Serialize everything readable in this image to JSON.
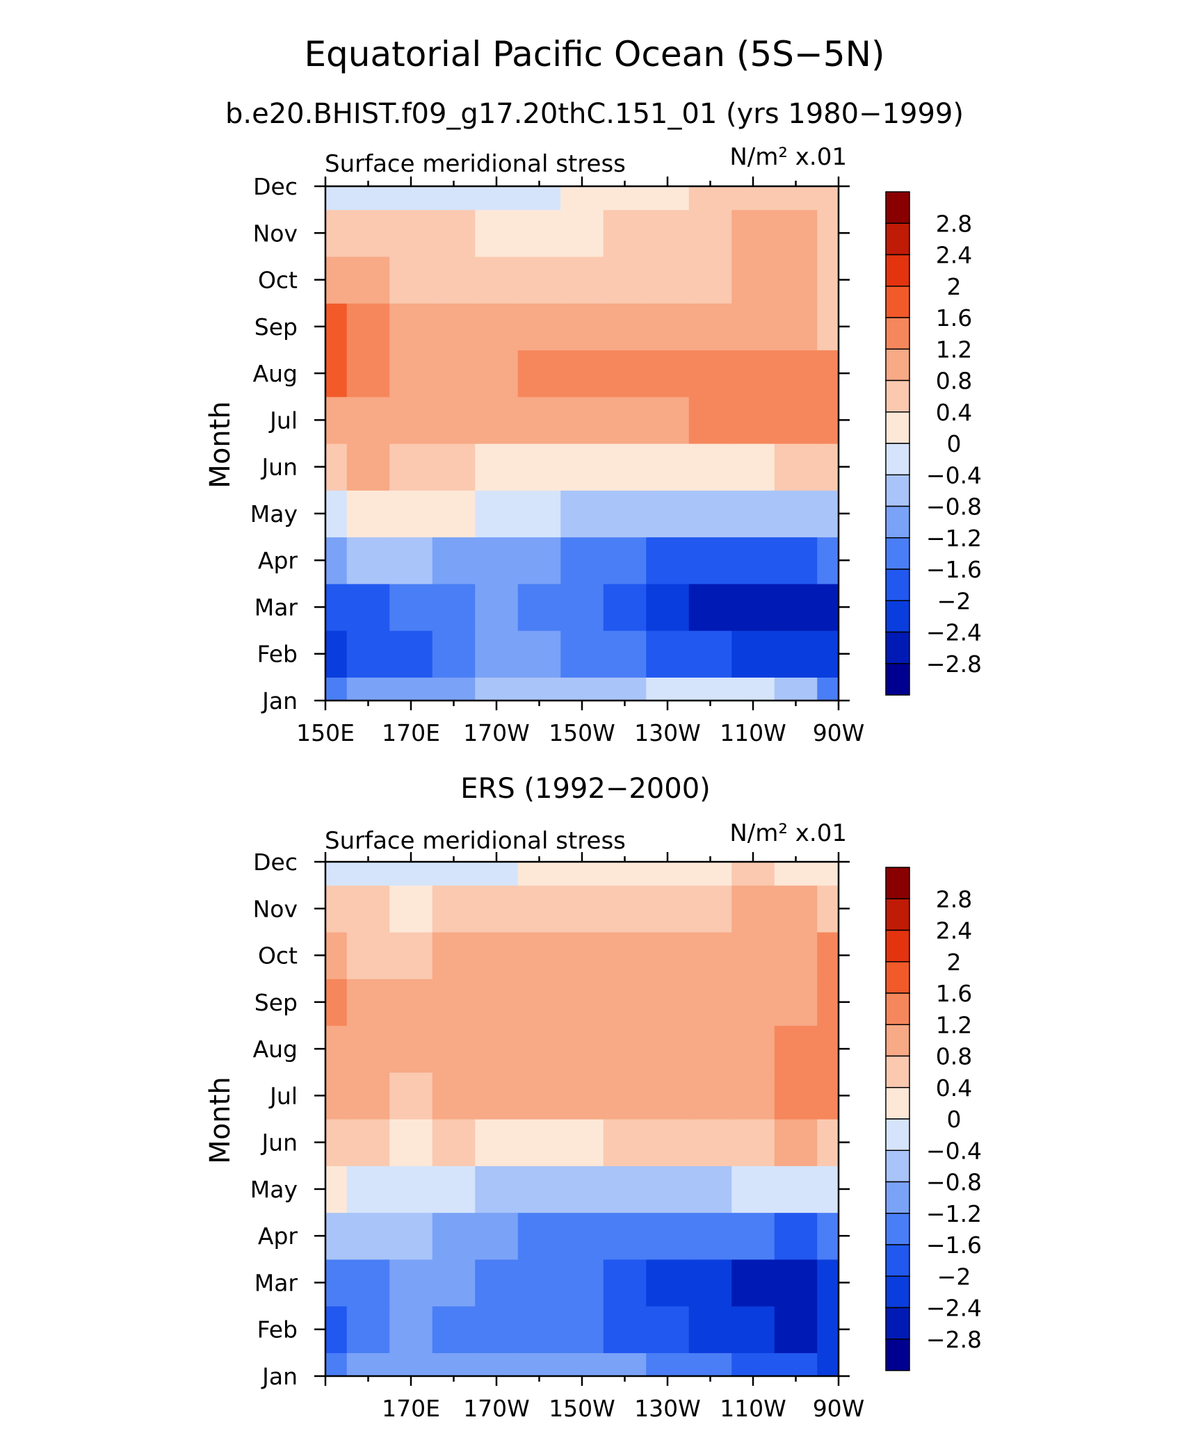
{
  "figure": {
    "title": "Equatorial Pacific Ocean (5S−5N)"
  },
  "palette": [
    "#000090",
    "#001bb5",
    "#0a3ddd",
    "#2158f0",
    "#4a7ef6",
    "#7aa2f7",
    "#a9c4f8",
    "#d5e4fb",
    "#fde8d8",
    "#fac9b0",
    "#f8a986",
    "#f6875c",
    "#f25a2a",
    "#e3330f",
    "#c01b06",
    "#8a0000"
  ],
  "colorbar": {
    "labels": [
      "2.8",
      "2.4",
      "2",
      "1.6",
      "1.2",
      "0.8",
      "0.4",
      "0",
      "−0.4",
      "−0.8",
      "−1.2",
      "−1.6",
      "−2",
      "−2.4",
      "−2.8"
    ]
  },
  "chart_data": [
    {
      "type": "heatmap",
      "title": "b.e20.BHIST.f09_g17.20thC.151_01 (yrs 1980−1999)",
      "left_label": "Surface meridional stress",
      "right_label": "N/m² x.01",
      "ylabel": "Month",
      "x": [
        "150E",
        "160E",
        "170E",
        "180",
        "170W",
        "160W",
        "150W",
        "140W",
        "130W",
        "120W",
        "110W",
        "100W",
        "90W"
      ],
      "x_tick_labels": [
        "150E",
        "170E",
        "170W",
        "150W",
        "130W",
        "110W",
        "90W"
      ],
      "y_tick_labels": [
        "Jan",
        "Feb",
        "Mar",
        "Apr",
        "May",
        "Jun",
        "Jul",
        "Aug",
        "Sep",
        "Oct",
        "Nov",
        "Dec"
      ],
      "contour_levels": [
        -2.8,
        -2.4,
        -2.0,
        -1.6,
        -1.2,
        -0.8,
        -0.4,
        0,
        0.4,
        0.8,
        1.2,
        1.6,
        2.0,
        2.4,
        2.8
      ],
      "values": [
        [
          -1.4,
          -1.1,
          -0.9,
          -0.9,
          -0.8,
          -0.7,
          -0.6,
          -0.5,
          -0.4,
          -0.3,
          -0.4,
          -0.8,
          -1.6
        ],
        [
          -2.2,
          -2.0,
          -1.7,
          -1.4,
          -1.2,
          -1.2,
          -1.3,
          -1.5,
          -1.7,
          -2.0,
          -2.2,
          -2.3,
          -2.2
        ],
        [
          -2.0,
          -1.7,
          -1.4,
          -1.3,
          -1.2,
          -1.3,
          -1.6,
          -1.9,
          -2.2,
          -2.5,
          -2.7,
          -2.8,
          -2.5
        ],
        [
          -0.9,
          -0.8,
          -0.8,
          -0.9,
          -0.9,
          -1.0,
          -1.3,
          -1.6,
          -1.8,
          -2.0,
          -2.0,
          -1.8,
          -1.6
        ],
        [
          -0.3,
          0.1,
          0.2,
          0.0,
          -0.2,
          -0.4,
          -0.5,
          -0.6,
          -0.7,
          -0.8,
          -0.7,
          -0.6,
          -0.5
        ],
        [
          0.5,
          0.8,
          0.7,
          0.4,
          0.2,
          0.1,
          0.1,
          0.0,
          0.0,
          0.0,
          0.2,
          0.4,
          0.6
        ],
        [
          1.1,
          1.0,
          0.9,
          0.9,
          0.8,
          0.8,
          0.9,
          1.0,
          1.1,
          1.2,
          1.3,
          1.4,
          1.5
        ],
        [
          1.6,
          1.2,
          1.0,
          1.0,
          1.1,
          1.2,
          1.4,
          1.5,
          1.4,
          1.3,
          1.4,
          1.4,
          1.3
        ],
        [
          1.6,
          1.2,
          1.0,
          1.0,
          1.0,
          1.0,
          1.1,
          1.1,
          1.0,
          0.9,
          1.0,
          0.9,
          0.7
        ],
        [
          1.1,
          0.8,
          0.7,
          0.7,
          0.7,
          0.6,
          0.6,
          0.6,
          0.5,
          0.6,
          0.8,
          0.8,
          0.7
        ],
        [
          0.4,
          0.5,
          0.4,
          0.4,
          0.3,
          0.3,
          0.3,
          0.4,
          0.5,
          0.7,
          0.9,
          0.8,
          0.6
        ],
        [
          -0.2,
          -0.2,
          -0.3,
          -0.3,
          -0.2,
          -0.1,
          0.1,
          0.2,
          0.3,
          0.5,
          0.6,
          0.6,
          0.5
        ]
      ]
    },
    {
      "type": "heatmap",
      "title": "ERS (1992−2000)",
      "left_label": "Surface meridional stress",
      "right_label": "N/m² x.01",
      "ylabel": "Month",
      "x": [
        "150E",
        "160E",
        "170E",
        "180",
        "170W",
        "160W",
        "150W",
        "140W",
        "130W",
        "120W",
        "110W",
        "100W",
        "90W"
      ],
      "x_tick_labels": [
        "170E",
        "170W",
        "150W",
        "130W",
        "110W",
        "90W"
      ],
      "y_tick_labels": [
        "Jan",
        "Feb",
        "Mar",
        "Apr",
        "May",
        "Jun",
        "Jul",
        "Aug",
        "Sep",
        "Oct",
        "Nov",
        "Dec"
      ],
      "contour_levels": [
        -2.8,
        -2.4,
        -2.0,
        -1.6,
        -1.2,
        -0.8,
        -0.4,
        0,
        0.4,
        0.8,
        1.2,
        1.6,
        2.0,
        2.4,
        2.8
      ],
      "values": [
        [
          -1.5,
          -1.2,
          -0.9,
          -1.0,
          -1.1,
          -1.0,
          -0.9,
          -1.2,
          -1.4,
          -1.6,
          -1.8,
          -2.0,
          -2.2
        ],
        [
          -1.9,
          -1.4,
          -1.2,
          -1.3,
          -1.3,
          -1.3,
          -1.4,
          -1.8,
          -2.0,
          -2.2,
          -2.4,
          -2.5,
          -2.4
        ],
        [
          -1.6,
          -1.3,
          -1.1,
          -1.2,
          -1.3,
          -1.3,
          -1.6,
          -1.9,
          -2.1,
          -2.3,
          -2.5,
          -2.7,
          -2.4
        ],
        [
          -0.6,
          -0.7,
          -0.7,
          -0.9,
          -1.2,
          -1.4,
          -1.5,
          -1.6,
          -1.6,
          -1.5,
          -1.6,
          -1.7,
          -1.5
        ],
        [
          0.1,
          -0.1,
          -0.2,
          -0.3,
          -0.5,
          -0.6,
          -0.7,
          -0.6,
          -0.6,
          -0.5,
          -0.3,
          -0.3,
          -0.2
        ],
        [
          0.5,
          0.4,
          0.3,
          0.4,
          0.3,
          0.2,
          0.3,
          0.4,
          0.5,
          0.6,
          0.7,
          0.8,
          0.7
        ],
        [
          0.8,
          0.8,
          0.7,
          0.8,
          0.9,
          0.9,
          1.0,
          1.0,
          1.0,
          0.9,
          1.1,
          1.4,
          1.3
        ],
        [
          1.0,
          0.9,
          0.8,
          0.9,
          1.0,
          1.0,
          1.1,
          1.1,
          1.0,
          0.9,
          1.0,
          1.3,
          1.5
        ],
        [
          1.3,
          0.9,
          0.8,
          1.0,
          1.1,
          1.0,
          1.0,
          1.0,
          0.9,
          0.8,
          0.9,
          1.0,
          1.4
        ],
        [
          0.9,
          0.7,
          0.6,
          0.8,
          0.9,
          0.8,
          0.9,
          0.9,
          0.8,
          0.8,
          0.9,
          0.9,
          1.2
        ],
        [
          0.5,
          0.5,
          0.3,
          0.4,
          0.5,
          0.5,
          0.6,
          0.6,
          0.6,
          0.7,
          0.9,
          0.8,
          0.7
        ],
        [
          -0.2,
          -0.1,
          -0.2,
          -0.3,
          -0.1,
          0.0,
          0.1,
          0.1,
          0.2,
          0.3,
          0.4,
          0.3,
          0.2
        ]
      ]
    }
  ]
}
